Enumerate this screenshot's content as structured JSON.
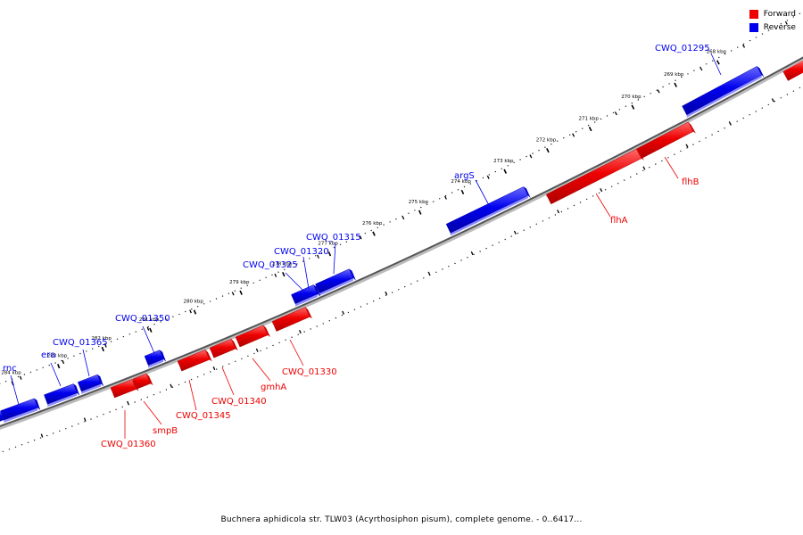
{
  "legend": {
    "items": [
      {
        "label": "Forward",
        "color": "#ee0000"
      },
      {
        "label": "Reverse",
        "color": "#0000ee"
      }
    ]
  },
  "caption": "Buchnera aphidicola str. TLW03 (Acyrthosiphon pisum), complete genome. - 0..6417...",
  "colors": {
    "forward": "#ee0000",
    "reverse": "#0000ee",
    "line": "#555555"
  },
  "ruler": [
    {
      "kbp": 268,
      "label": "268 kbp"
    },
    {
      "kbp": 269,
      "label": "269 kbp"
    },
    {
      "kbp": 270,
      "label": "270 kbp"
    },
    {
      "kbp": 271,
      "label": "271 kbp"
    },
    {
      "kbp": 272,
      "label": "272 kbp"
    },
    {
      "kbp": 273,
      "label": "273 kbp"
    },
    {
      "kbp": 274,
      "label": "274 kbp"
    },
    {
      "kbp": 275,
      "label": "275 kbp"
    },
    {
      "kbp": 276,
      "label": "276 kbp"
    },
    {
      "kbp": 277,
      "label": "277 kbp"
    },
    {
      "kbp": 278,
      "label": "278 kbp"
    },
    {
      "kbp": 279,
      "label": "279 kbp"
    },
    {
      "kbp": 280,
      "label": "280 kbp"
    },
    {
      "kbp": 281,
      "label": "281 kbp"
    },
    {
      "kbp": 282,
      "label": "282 kbp"
    },
    {
      "kbp": 283,
      "label": "283 kbp"
    },
    {
      "kbp": 284,
      "label": "284 kbp"
    }
  ],
  "genes": [
    {
      "name": "CWQ_01295",
      "strand": "reverse"
    },
    {
      "name": "argS",
      "strand": "reverse"
    },
    {
      "name": "CWQ_01315",
      "strand": "reverse"
    },
    {
      "name": "CWQ_01320",
      "strand": "reverse"
    },
    {
      "name": "CWQ_01325",
      "strand": "reverse"
    },
    {
      "name": "CWQ_01350",
      "strand": "reverse"
    },
    {
      "name": "CWQ_01365",
      "strand": "reverse"
    },
    {
      "name": "era",
      "strand": "reverse"
    },
    {
      "name": "rnc",
      "strand": "reverse"
    },
    {
      "name": "flhB",
      "strand": "forward"
    },
    {
      "name": "flhA",
      "strand": "forward"
    },
    {
      "name": "CWQ_01330",
      "strand": "forward"
    },
    {
      "name": "gmhA",
      "strand": "forward"
    },
    {
      "name": "CWQ_01340",
      "strand": "forward"
    },
    {
      "name": "CWQ_01345",
      "strand": "forward"
    },
    {
      "name": "smpB",
      "strand": "forward"
    },
    {
      "name": "CWQ_01360",
      "strand": "forward"
    }
  ]
}
